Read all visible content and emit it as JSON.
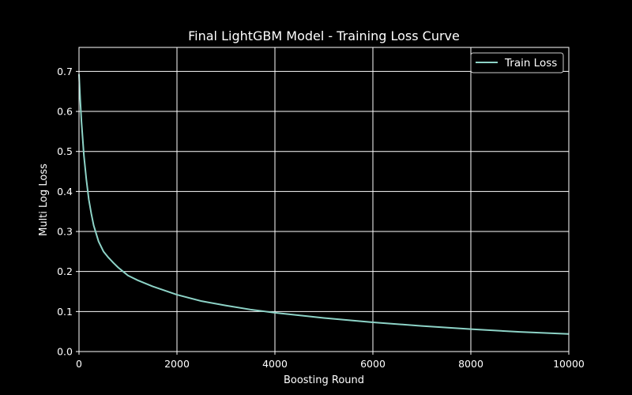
{
  "chart_data": {
    "type": "line",
    "title": "Final LightGBM Model - Training Loss Curve",
    "xlabel": "Boosting Round",
    "ylabel": "Multi Log Loss",
    "xlim": [
      0,
      10000
    ],
    "ylim": [
      0.0,
      0.76
    ],
    "xticks": [
      0,
      2000,
      4000,
      6000,
      8000,
      10000
    ],
    "yticks": [
      0.0,
      0.1,
      0.2,
      0.3,
      0.4,
      0.5,
      0.6,
      0.7
    ],
    "ytick_labels": [
      "0.0",
      "0.1",
      "0.2",
      "0.3",
      "0.4",
      "0.5",
      "0.6",
      "0.7"
    ],
    "grid": true,
    "legend": "top-right",
    "series": [
      {
        "name": "Train Loss",
        "color": "#8dd3c7",
        "x": [
          0,
          25,
          50,
          100,
          150,
          200,
          250,
          300,
          400,
          500,
          600,
          700,
          800,
          900,
          1000,
          1200,
          1500,
          2000,
          2500,
          3000,
          3500,
          4000,
          5000,
          6000,
          7000,
          8000,
          9000,
          10000
        ],
        "y": [
          0.693,
          0.63,
          0.575,
          0.49,
          0.43,
          0.38,
          0.345,
          0.315,
          0.275,
          0.25,
          0.235,
          0.222,
          0.21,
          0.2,
          0.19,
          0.178,
          0.163,
          0.142,
          0.126,
          0.115,
          0.105,
          0.097,
          0.084,
          0.073,
          0.064,
          0.056,
          0.049,
          0.044
        ]
      }
    ]
  }
}
